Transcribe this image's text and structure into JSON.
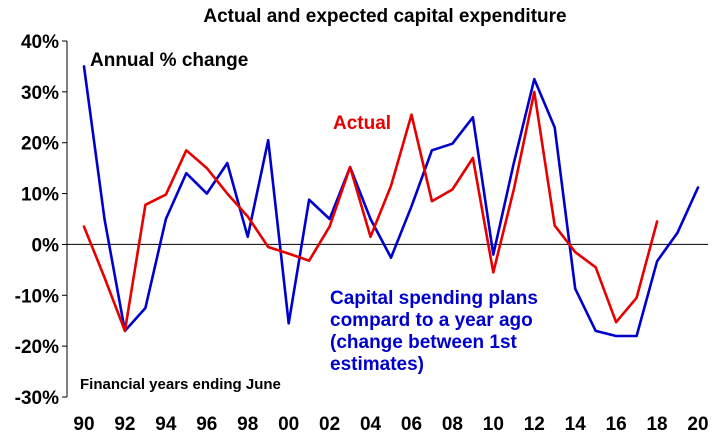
{
  "chart_data": {
    "type": "line",
    "title": "Actual and expected capital expenditure",
    "xlabel": "",
    "ylabel": "",
    "ylim": [
      -30,
      40
    ],
    "xlim": [
      1990,
      2020
    ],
    "y_ticks": [
      "40%",
      "30%",
      "20%",
      "10%",
      "0%",
      "-10%",
      "-20%",
      "-30%"
    ],
    "y_tick_values": [
      40,
      30,
      20,
      10,
      0,
      -10,
      -20,
      -30
    ],
    "x_ticks": [
      "90",
      "92",
      "94",
      "96",
      "98",
      "00",
      "02",
      "04",
      "06",
      "08",
      "10",
      "12",
      "14",
      "16",
      "18",
      "20"
    ],
    "x_tick_values": [
      1990,
      1992,
      1994,
      1996,
      1998,
      2000,
      2002,
      2004,
      2006,
      2008,
      2010,
      2012,
      2014,
      2016,
      2018,
      2020
    ],
    "grid": false,
    "annotations": {
      "units": "Annual % change",
      "footnote": "Financial years ending June"
    },
    "series": [
      {
        "name": "Actual",
        "color": "#e60000",
        "x": [
          1990,
          1991,
          1992,
          1993,
          1994,
          1995,
          1996,
          1997,
          1998,
          1999,
          2000,
          2001,
          2002,
          2003,
          2004,
          2005,
          2006,
          2007,
          2008,
          2009,
          2010,
          2011,
          2012,
          2013,
          2014,
          2015,
          2016,
          2017,
          2018
        ],
        "y": [
          3.5,
          -6.5,
          -17,
          7.8,
          9.8,
          18.5,
          15,
          10,
          5.5,
          -0.5,
          -1.8,
          -3.2,
          3.5,
          15.2,
          1.5,
          11.5,
          25.5,
          8.5,
          10.8,
          17,
          -5.5,
          10.8,
          30,
          3.7,
          -1.5,
          -4.5,
          -15.3,
          -10.5,
          4.5
        ]
      },
      {
        "name": "Capital spending plans",
        "label_lines": [
          "Capital spending plans",
          "compard to a year ago",
          "(change between 1st",
          "estimates)"
        ],
        "color": "#0000cc",
        "x": [
          1990,
          1991,
          1992,
          1993,
          1994,
          1995,
          1996,
          1997,
          1998,
          1999,
          2000,
          2001,
          2002,
          2003,
          2004,
          2005,
          2006,
          2007,
          2008,
          2009,
          2010,
          2011,
          2012,
          2013,
          2014,
          2015,
          2016,
          2017,
          2018,
          2019,
          2020
        ],
        "y": [
          35,
          5,
          -17,
          -12.5,
          5,
          14,
          10,
          16,
          1.5,
          20.5,
          -15.5,
          8.8,
          5,
          15.2,
          5,
          -2.6,
          7.5,
          18.5,
          19.8,
          25,
          -2,
          16,
          32.5,
          23,
          -8.7,
          -17,
          -18,
          -18,
          -3.3,
          2.3,
          11.2
        ]
      }
    ]
  }
}
